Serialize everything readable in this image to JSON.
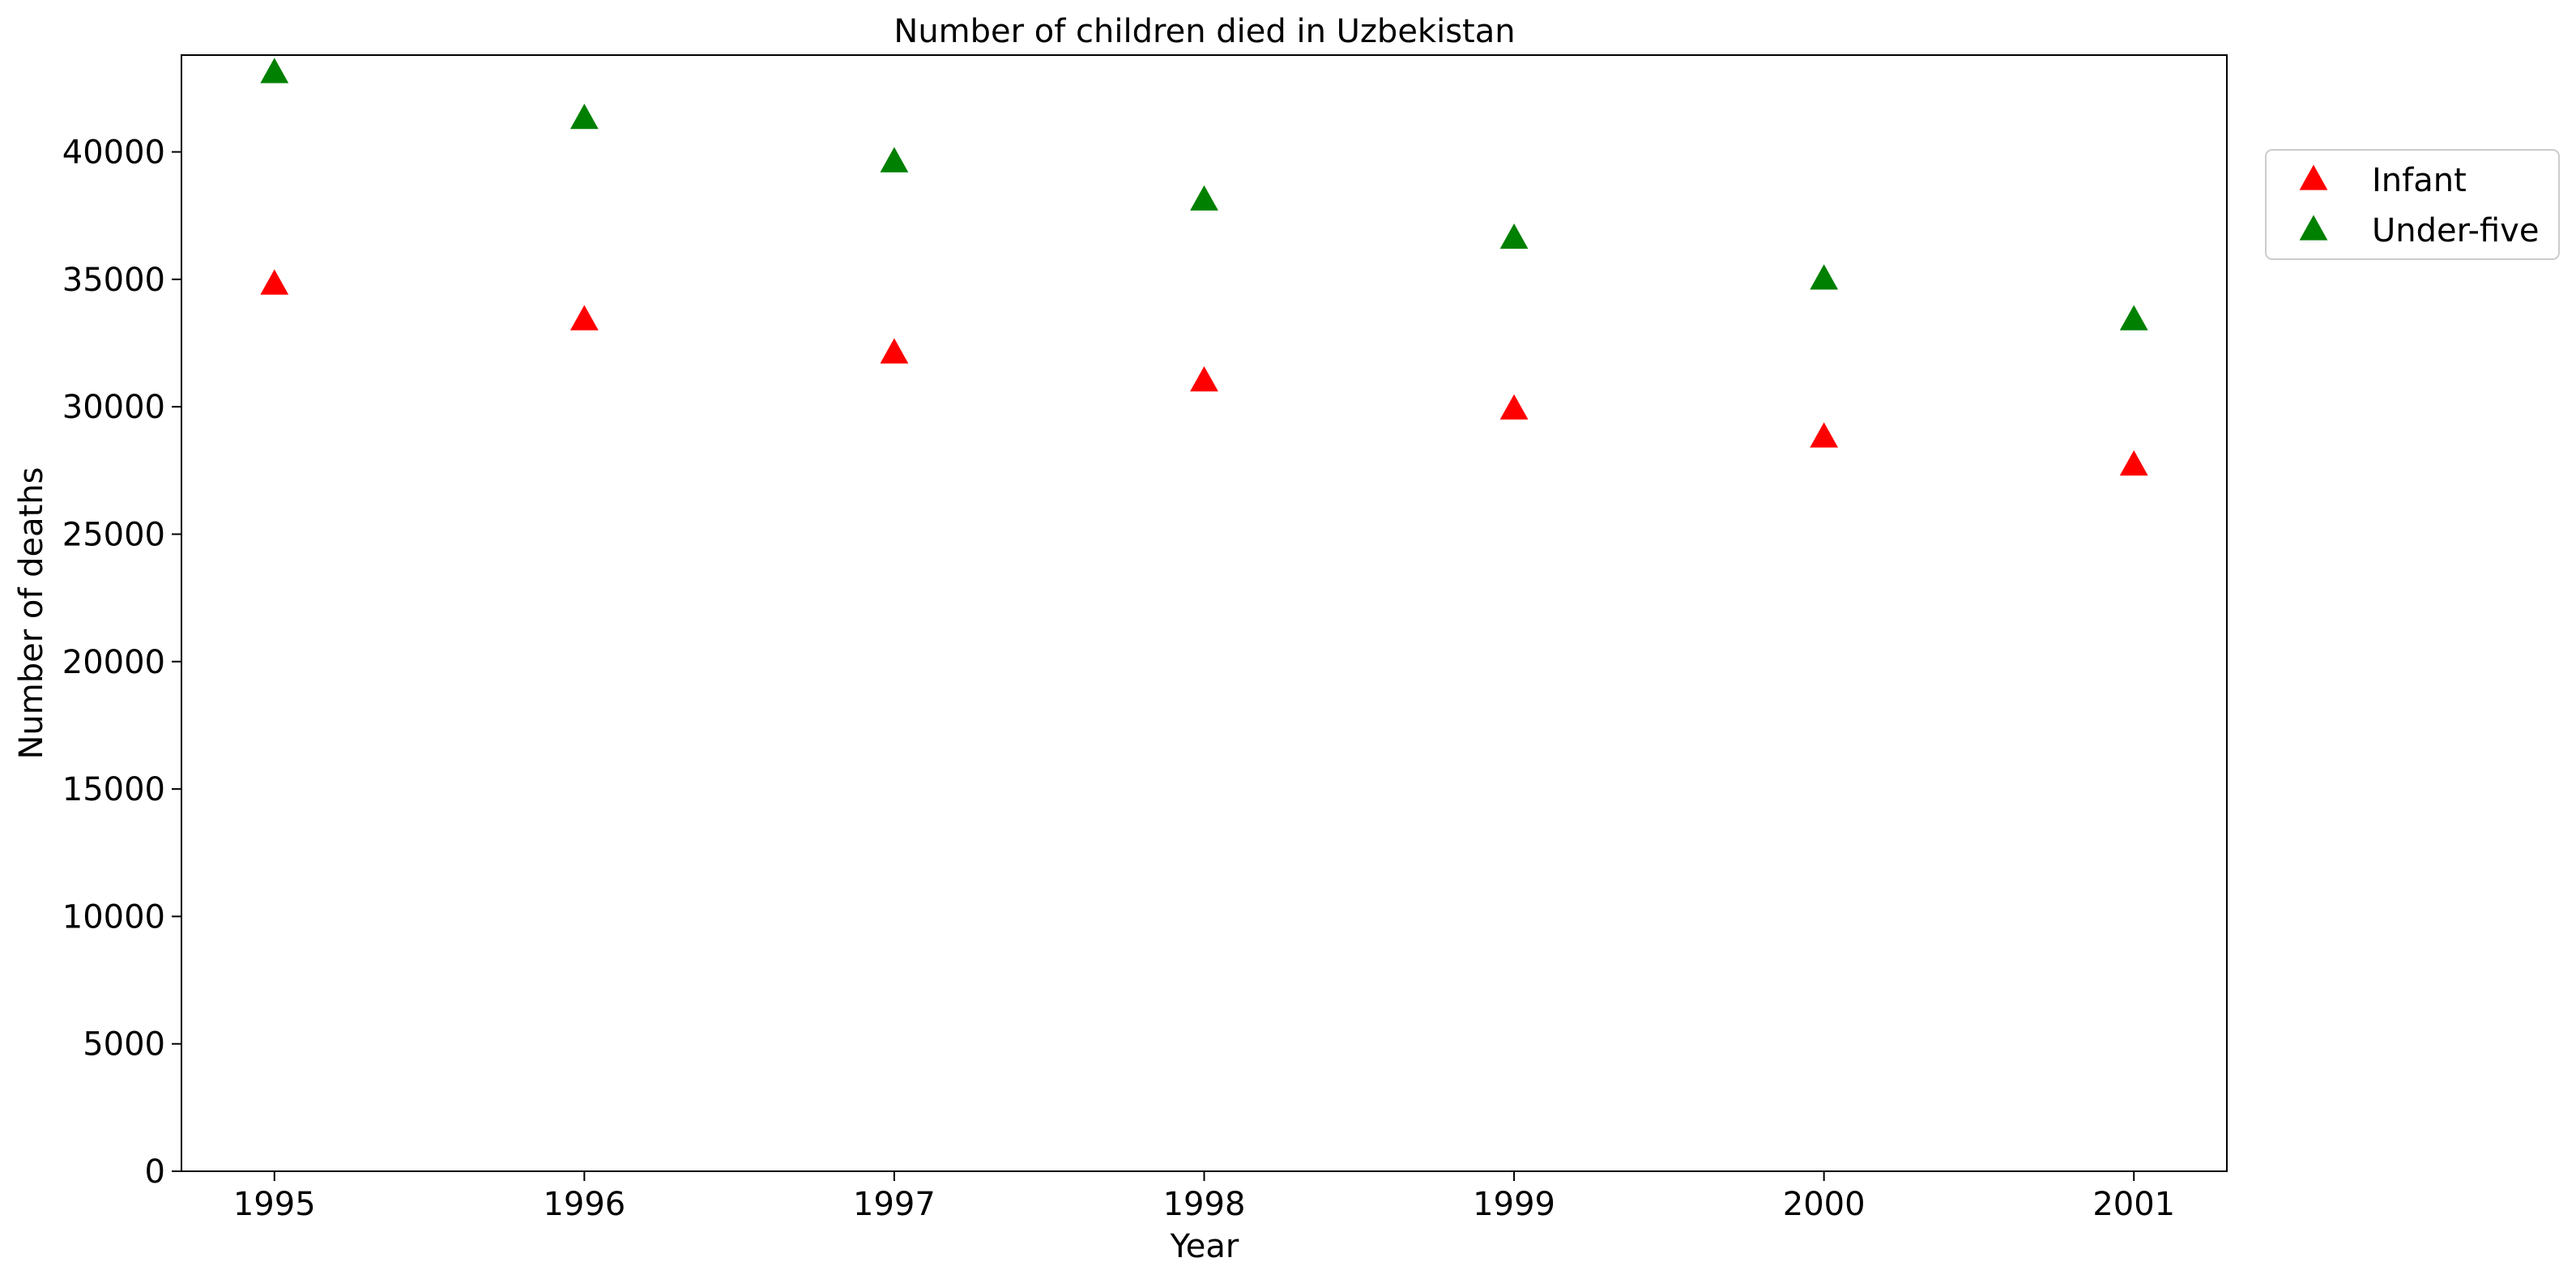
{
  "chart_data": {
    "type": "scatter",
    "title": "Number of children died in Uzbekistan",
    "xlabel": "Year",
    "ylabel": "Number of deaths",
    "x": [
      1995,
      1996,
      1997,
      1998,
      1999,
      2000,
      2001
    ],
    "x_tick_labels": [
      "1995",
      "1996",
      "1997",
      "1998",
      "1999",
      "2000",
      "2001"
    ],
    "ylim": [
      0,
      43800
    ],
    "y_ticks": [
      0,
      5000,
      10000,
      15000,
      20000,
      25000,
      30000,
      35000,
      40000
    ],
    "y_tick_labels": [
      "0",
      "5000",
      "10000",
      "15000",
      "20000",
      "25000",
      "30000",
      "35000",
      "40000"
    ],
    "marker": "triangle-up",
    "grid": false,
    "legend_position": "outside-top-right",
    "series": [
      {
        "name": "Infant",
        "color": "#ff0000",
        "values": [
          34800,
          33400,
          32100,
          31000,
          29900,
          28800,
          27700
        ]
      },
      {
        "name": "Under-five",
        "color": "#008000",
        "values": [
          43100,
          41300,
          39600,
          38100,
          36600,
          35000,
          33400
        ]
      }
    ]
  }
}
